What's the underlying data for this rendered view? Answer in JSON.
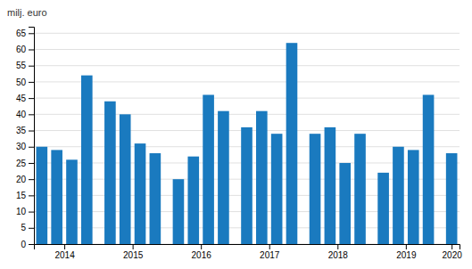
{
  "chart_data": {
    "type": "bar",
    "ylabel": "milj. euro",
    "categories": [
      "2014",
      null,
      null,
      null,
      "2015",
      null,
      null,
      null,
      "2016",
      null,
      null,
      null,
      "2017",
      null,
      null,
      null,
      "2018",
      null,
      null,
      null,
      "2019",
      null,
      null,
      null,
      "2020"
    ],
    "values": [
      30,
      29,
      26,
      52,
      44,
      40,
      31,
      28,
      20,
      27,
      46,
      41,
      36,
      41,
      34,
      62,
      34,
      36,
      25,
      34,
      22,
      30,
      29,
      46,
      28
    ],
    "color": "#1a7abf",
    "ylim": [
      0,
      67
    ],
    "yticks": [
      0,
      5,
      10,
      15,
      20,
      25,
      30,
      35,
      40,
      45,
      50,
      55,
      60,
      65
    ],
    "grid": true
  }
}
